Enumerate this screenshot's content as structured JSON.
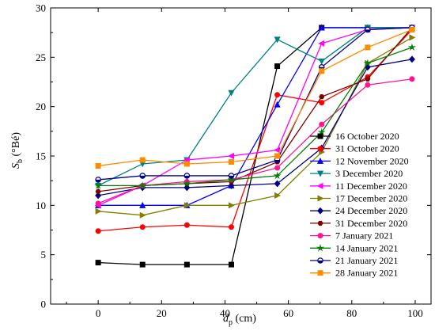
{
  "chart_data": {
    "type": "line",
    "xlabel": {
      "main": "d",
      "sub": "p",
      "unit": " (cm)"
    },
    "ylabel": {
      "main": "S",
      "sub": "b",
      "unit": " (°Bé)"
    },
    "xlim": [
      -15,
      105
    ],
    "ylim": [
      0,
      30
    ],
    "xticks": [
      0,
      20,
      40,
      60,
      80,
      100
    ],
    "yticks": [
      0,
      5,
      10,
      15,
      20,
      25,
      30
    ],
    "grid": false,
    "legend_position": "right",
    "series": [
      {
        "name": "16 October 2020",
        "color": "#000000",
        "marker": "square",
        "x": [
          0,
          14,
          28,
          42,
          56.5,
          70.5,
          85,
          99
        ],
        "y": [
          4.2,
          4.0,
          4.0,
          4.0,
          24.1,
          28.0,
          28.0,
          28.0
        ]
      },
      {
        "name": "31 October 2020",
        "color": "#ff0000",
        "marker": "circle",
        "x": [
          0,
          14,
          28,
          42,
          56.5,
          70.5,
          85,
          99
        ],
        "y": [
          7.4,
          7.8,
          8.0,
          7.8,
          21.2,
          20.4,
          23.0,
          27.8
        ]
      },
      {
        "name": "12 November 2020",
        "color": "#0000ff",
        "marker": "triangle-up",
        "x": [
          0,
          14,
          28,
          42,
          56.5,
          70.5,
          85,
          99
        ],
        "y": [
          10.0,
          10.0,
          10.0,
          12.0,
          20.2,
          28.0,
          28.0,
          28.0
        ]
      },
      {
        "name": "3 December 2020",
        "color": "#008080",
        "marker": "triangle-down",
        "x": [
          0,
          14,
          28,
          42,
          56.5,
          70.5,
          85,
          99
        ],
        "y": [
          12.0,
          14.2,
          14.6,
          21.4,
          26.8,
          24.6,
          28.0,
          28.0
        ]
      },
      {
        "name": "11 December 2020",
        "color": "#ff00ff",
        "marker": "triangle-left",
        "x": [
          0,
          14,
          28,
          42,
          56.5,
          70.5,
          85,
          99
        ],
        "y": [
          10.0,
          12.0,
          14.6,
          15.0,
          15.6,
          26.4,
          27.8,
          28.0
        ]
      },
      {
        "name": "17 December 2020",
        "color": "#808000",
        "marker": "triangle-right",
        "x": [
          0,
          14,
          28,
          42,
          56.5,
          70.5,
          85,
          99
        ],
        "y": [
          9.4,
          9.0,
          10.0,
          10.0,
          11.0,
          15.4,
          24.4,
          27.0
        ]
      },
      {
        "name": "24 December 2020",
        "color": "#000080",
        "marker": "diamond",
        "x": [
          0,
          14,
          28,
          42,
          56.5,
          70.5,
          85,
          99
        ],
        "y": [
          11.0,
          11.8,
          11.8,
          12.0,
          12.2,
          15.8,
          24.0,
          24.8
        ]
      },
      {
        "name": "31 December 2020",
        "color": "#800000",
        "marker": "hexagon",
        "x": [
          0,
          14,
          28,
          42,
          56.5,
          70.5,
          85,
          99
        ],
        "y": [
          11.4,
          12.0,
          12.2,
          12.4,
          14.4,
          21.0,
          22.8,
          28.0
        ]
      },
      {
        "name": "7 January 2021",
        "color": "#ff1493",
        "marker": "circle",
        "x": [
          0,
          14,
          28,
          42,
          56.5,
          70.5,
          85,
          99
        ],
        "y": [
          10.2,
          12.0,
          12.4,
          12.6,
          13.8,
          18.2,
          22.2,
          22.8
        ]
      },
      {
        "name": "14 January 2021",
        "color": "#008000",
        "marker": "star",
        "x": [
          0,
          14,
          28,
          42,
          56.5,
          70.5,
          85,
          99
        ],
        "y": [
          12.0,
          12.0,
          12.2,
          12.6,
          13.0,
          17.4,
          24.4,
          26.0
        ]
      },
      {
        "name": "21 January 2021",
        "color": "#00008b",
        "marker": "half-circle",
        "x": [
          0,
          14,
          28,
          42,
          56.5,
          70.5,
          85,
          99
        ],
        "y": [
          12.6,
          13.0,
          13.0,
          13.0,
          14.6,
          24.0,
          27.8,
          28.0
        ]
      },
      {
        "name": "28 January 2021",
        "color": "#ff8c00",
        "marker": "square",
        "x": [
          0,
          14,
          28,
          42,
          56.5,
          70.5,
          85,
          99
        ],
        "y": [
          14.0,
          14.6,
          14.2,
          14.4,
          15.0,
          23.6,
          26.0,
          27.8
        ]
      }
    ]
  }
}
